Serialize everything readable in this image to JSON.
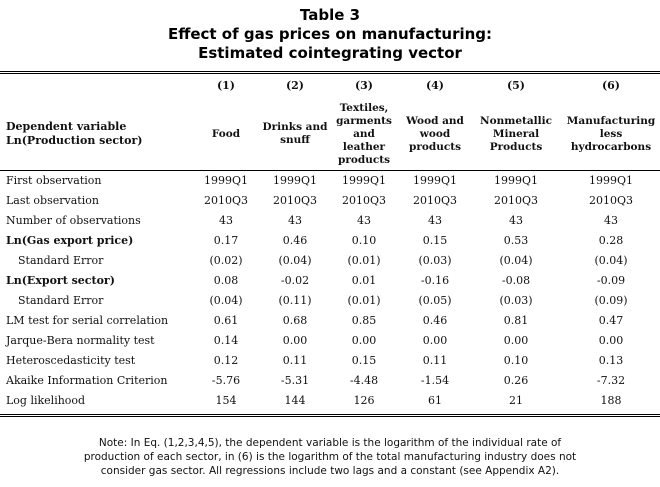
{
  "title": {
    "line1": "Table 3",
    "line2": "Effect of gas prices on manufacturing:",
    "line3": "Estimated cointegrating vector"
  },
  "columns": {
    "numbers": [
      "(1)",
      "(2)",
      "(3)",
      "(4)",
      "(5)",
      "(6)"
    ],
    "header_label_line1": "Dependent variable",
    "header_label_line2": "Ln(Production sector)",
    "names": [
      [
        "Food"
      ],
      [
        "Drinks and",
        "snuff"
      ],
      [
        "Textiles,",
        "garments",
        "and",
        "leather",
        "products"
      ],
      [
        "Wood and",
        "wood",
        "products"
      ],
      [
        "Nonmetallic",
        "Mineral",
        "Products"
      ],
      [
        "Manufacturing",
        "less",
        "hydrocarbons"
      ]
    ]
  },
  "rows": [
    {
      "label": "First observation",
      "style": "plain",
      "values": [
        "1999Q1",
        "1999Q1",
        "1999Q1",
        "1999Q1",
        "1999Q1",
        "1999Q1"
      ]
    },
    {
      "label": "Last observation",
      "style": "plain",
      "values": [
        "2010Q3",
        "2010Q3",
        "2010Q3",
        "2010Q3",
        "2010Q3",
        "2010Q3"
      ]
    },
    {
      "label": "Number of observations",
      "style": "plain",
      "values": [
        "43",
        "43",
        "43",
        "43",
        "43",
        "43"
      ]
    },
    {
      "label": "Ln(Gas export price)",
      "style": "bold",
      "values": [
        "0.17",
        "0.46",
        "0.10",
        "0.15",
        "0.53",
        "0.28"
      ]
    },
    {
      "label": "Standard Error",
      "style": "indent",
      "values": [
        "(0.02)",
        "(0.04)",
        "(0.01)",
        "(0.03)",
        "(0.04)",
        "(0.04)"
      ]
    },
    {
      "label": "Ln(Export sector)",
      "style": "bold",
      "values": [
        "0.08",
        "-0.02",
        "0.01",
        "-0.16",
        "-0.08",
        "-0.09"
      ]
    },
    {
      "label": "Standard Error",
      "style": "indent",
      "values": [
        "(0.04)",
        "(0.11)",
        "(0.01)",
        "(0.05)",
        "(0.03)",
        "(0.09)"
      ]
    },
    {
      "label": "LM test for serial correlation",
      "style": "plain",
      "values": [
        "0.61",
        "0.68",
        "0.85",
        "0.46",
        "0.81",
        "0.47"
      ]
    },
    {
      "label": "Jarque-Bera normality test",
      "style": "plain",
      "values": [
        "0.14",
        "0.00",
        "0.00",
        "0.00",
        "0.00",
        "0.00"
      ]
    },
    {
      "label": "Heteroscedasticity test",
      "style": "plain",
      "values": [
        "0.12",
        "0.11",
        "0.15",
        "0.11",
        "0.10",
        "0.13"
      ]
    },
    {
      "label": "Akaike Information Criterion",
      "style": "plain",
      "values": [
        "-5.76",
        "-5.31",
        "-4.48",
        "-1.54",
        "0.26",
        "-7.32"
      ]
    },
    {
      "label": "Log likelihood",
      "style": "plain",
      "values": [
        "154",
        "144",
        "126",
        "61",
        "21",
        "188"
      ]
    }
  ],
  "note": {
    "line1": "Note: In Eq. (1,2,3,4,5), the dependent variable is the logarithm of the individual rate of",
    "line2": "production of each sector, in (6) is the logarithm of the total manufacturing industry does not",
    "line3": "consider gas sector. All regressions include two lags and a constant (see Appendix A2)."
  }
}
